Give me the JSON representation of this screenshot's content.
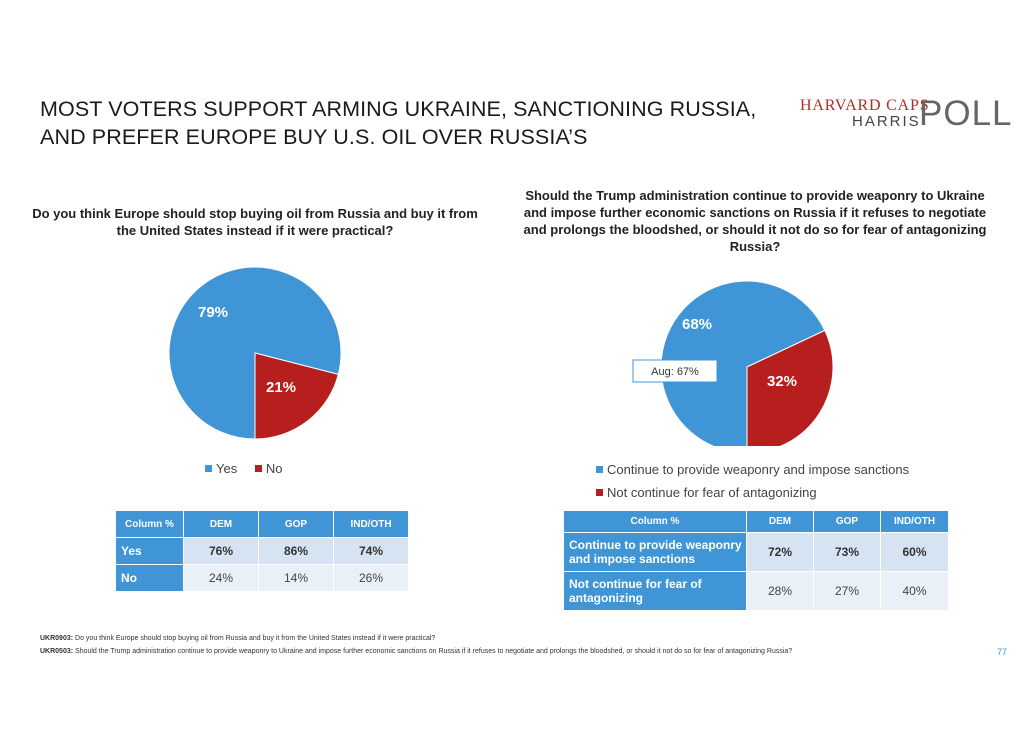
{
  "title": "MOST VOTERS SUPPORT ARMING UKRAINE, SANCTIONING RUSSIA, AND PREFER EUROPE BUY U.S. OIL OVER RUSSIA’S",
  "logo": {
    "line1": "HARVARD CAPS",
    "line2": "HARRIS",
    "line3": "POLL"
  },
  "colors": {
    "blue": "#3f95d6",
    "red": "#b71f1f",
    "header_blue": "#3f95d6"
  },
  "chart_data": [
    {
      "type": "pie",
      "title": "Do you think Europe should stop buying oil from Russia and buy it from the United States instead if it were practical?",
      "categories": [
        "Yes",
        "No"
      ],
      "values": [
        79,
        21
      ],
      "data_labels": [
        "79%",
        "21%"
      ],
      "colors": [
        "#3f95d6",
        "#b71f1f"
      ],
      "legend": "bottom"
    },
    {
      "type": "pie",
      "title": "Should the Trump administration continue to provide weaponry to Ukraine and impose further economic sanctions on Russia if it refuses to negotiate and prolongs the bloodshed, or should it not do so for fear of antagonizing Russia?",
      "categories": [
        "Continue to provide weaponry and impose sanctions",
        "Not continue for fear of antagonizing"
      ],
      "values": [
        68,
        32
      ],
      "data_labels": [
        "68%",
        "32%"
      ],
      "colors": [
        "#3f95d6",
        "#b71f1f"
      ],
      "annotation": "Aug: 67%",
      "legend": "bottom"
    }
  ],
  "table1": {
    "headers": [
      "Column %",
      "DEM",
      "GOP",
      "IND/OTH"
    ],
    "rows": [
      {
        "label": "Yes",
        "values": [
          "76%",
          "86%",
          "74%"
        ]
      },
      {
        "label": "No",
        "values": [
          "24%",
          "14%",
          "26%"
        ]
      }
    ]
  },
  "table2": {
    "headers": [
      "Column %",
      "DEM",
      "GOP",
      "IND/OTH"
    ],
    "rows": [
      {
        "label": "Continue to provide weaponry and impose sanctions",
        "values": [
          "72%",
          "73%",
          "60%"
        ]
      },
      {
        "label": "Not continue for fear of antagonizing",
        "values": [
          "28%",
          "27%",
          "40%"
        ]
      }
    ]
  },
  "footnotes": [
    {
      "code": "UKR0903:",
      "text": "Do you think Europe should stop buying oil from Russia and buy it from the United States instead if it were practical?"
    },
    {
      "code": "UKR0503:",
      "text": "Should the Trump administration continue to provide weaponry to Ukraine and impose further economic sanctions on Russia if it refuses to negotiate and prolongs the bloodshed, or should it not do so for fear of antagonizing Russia?"
    }
  ],
  "page_number": "77"
}
